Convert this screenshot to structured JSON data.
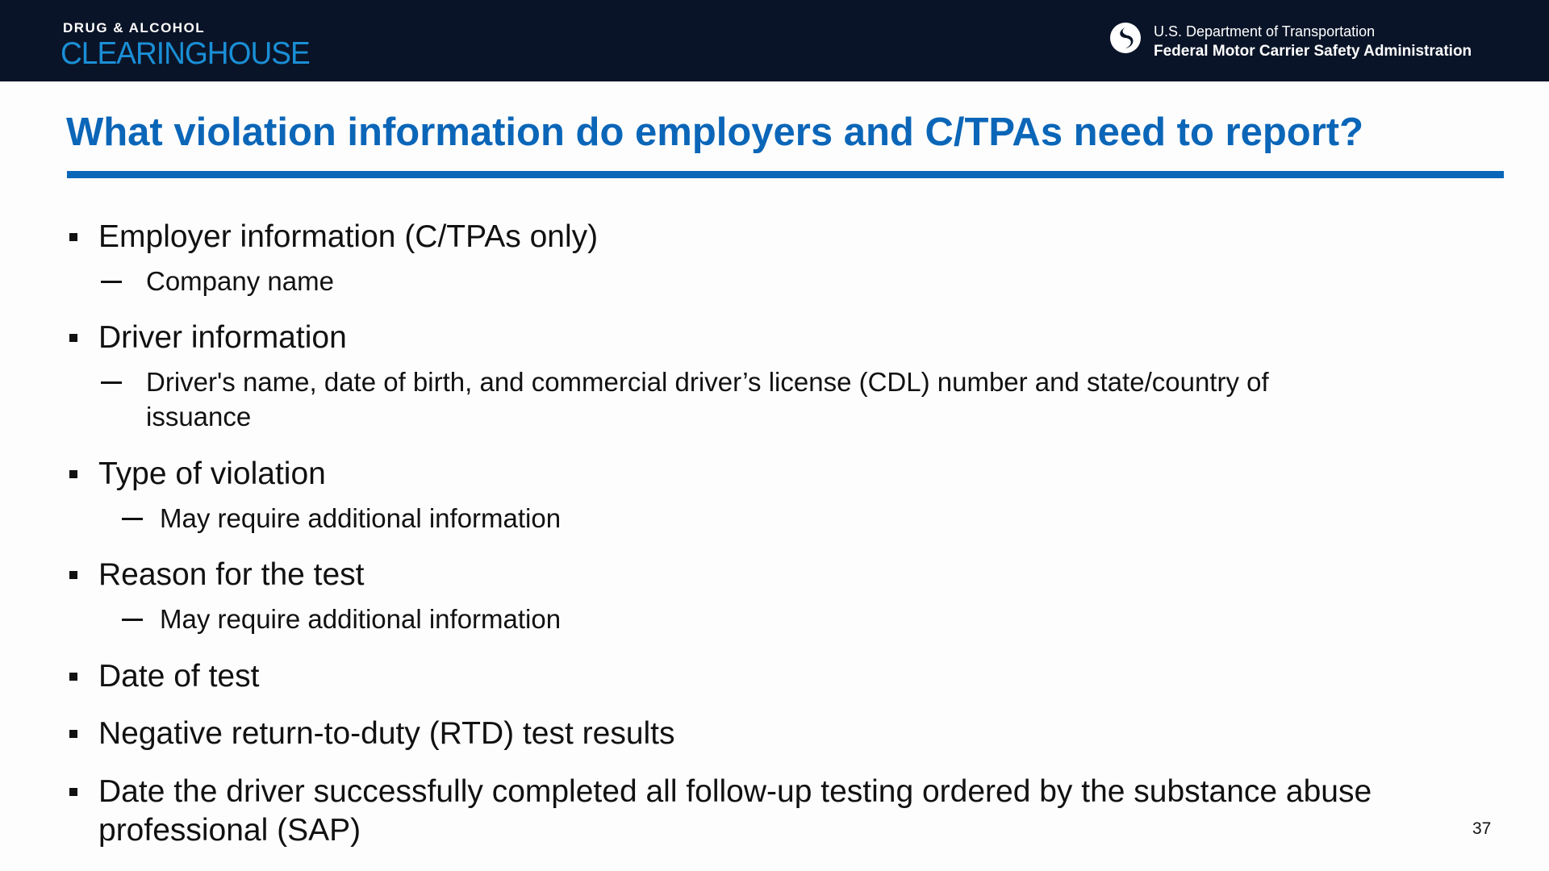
{
  "header": {
    "logo_top": "DRUG & ALCOHOL",
    "logo_main": "CLEARINGHOUSE",
    "agency_line1": "U.S. Department of Transportation",
    "agency_line2": "Federal Motor Carrier Safety Administration"
  },
  "title": "What violation information do employers and C/TPAs need to report?",
  "bullets": [
    {
      "text": "Employer information (C/TPAs only)",
      "sub": "Company name"
    },
    {
      "text": "Driver information",
      "sub": "Driver's name, date of birth, and commercial driver’s license (CDL) number and state/country of",
      "sub_cont": "issuance"
    },
    {
      "text": "Type of violation",
      "sub": "May require additional information"
    },
    {
      "text": "Reason for the test",
      "sub": "May require additional information"
    },
    {
      "text": "Date of test"
    },
    {
      "text": "Negative return-to-duty (RTD) test results"
    },
    {
      "text": "Date the driver successfully completed all follow-up testing ordered by the substance abuse",
      "cont": "professional (SAP)"
    }
  ],
  "page_number": "37",
  "colors": {
    "header_bg": "#0a1428",
    "accent": "#0b66b8",
    "logo_blue": "#1a8fd6"
  }
}
